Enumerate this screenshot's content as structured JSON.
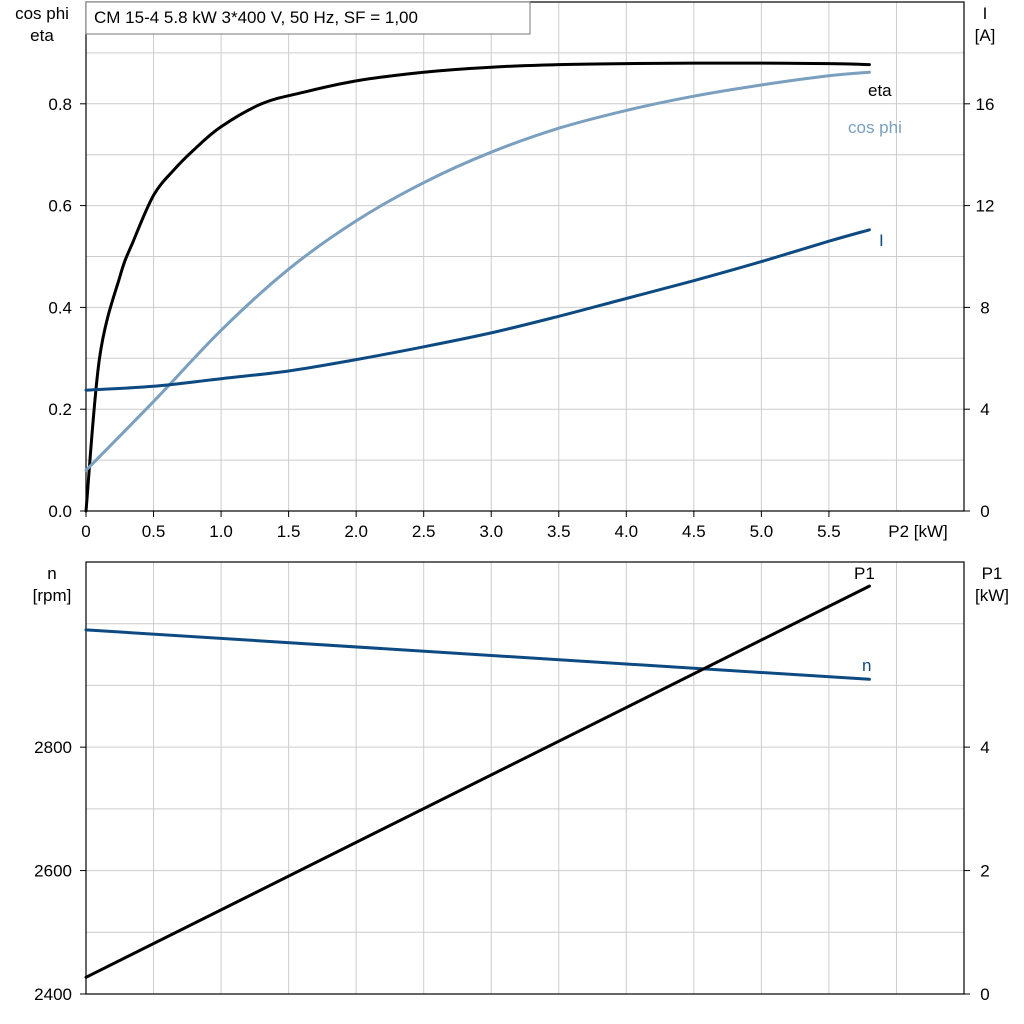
{
  "title_box": "CM 15-4   5.8 kW   3*400 V, 50 Hz, SF = 1,00",
  "colors": {
    "eta": "#000000",
    "cos_phi": "#7a9fbf",
    "I": "#0e4a82",
    "n": "#0e4a82",
    "P1": "#000000"
  },
  "chart_data": [
    {
      "type": "line",
      "x_label": "P2 [kW]",
      "x_ticks": [
        "0",
        "0.5",
        "1.0",
        "1.5",
        "2.0",
        "2.5",
        "3.0",
        "3.5",
        "4.0",
        "4.5",
        "5.0",
        "5.5"
      ],
      "xlim": [
        0,
        6.5
      ],
      "y_left_label": [
        "cos phi",
        "eta"
      ],
      "y_left_ticks": [
        "0.0",
        "0.2",
        "0.4",
        "0.6",
        "0.8"
      ],
      "ylim_left": [
        0,
        1.0
      ],
      "y_right_label": [
        "I",
        "[A]"
      ],
      "y_right_ticks": [
        "0",
        "4",
        "8",
        "12",
        "16"
      ],
      "ylim_right": [
        0,
        20
      ],
      "grid": true,
      "series": [
        {
          "name": "eta",
          "axis": "left",
          "x": [
            0,
            0.1,
            0.25,
            0.35,
            0.5,
            0.65,
            0.8,
            1.0,
            1.3,
            1.6,
            2.0,
            2.5,
            3.0,
            3.5,
            4.0,
            4.5,
            5.0,
            5.5,
            5.8
          ],
          "y": [
            0.0,
            0.3,
            0.46,
            0.53,
            0.62,
            0.67,
            0.71,
            0.755,
            0.8,
            0.822,
            0.845,
            0.862,
            0.872,
            0.877,
            0.879,
            0.88,
            0.88,
            0.879,
            0.877
          ]
        },
        {
          "name": "cos phi",
          "axis": "left",
          "x": [
            0,
            0.5,
            1.0,
            1.5,
            2.0,
            2.5,
            3.0,
            3.5,
            4.0,
            4.5,
            5.0,
            5.5,
            5.8
          ],
          "y": [
            0.08,
            0.215,
            0.355,
            0.475,
            0.57,
            0.645,
            0.705,
            0.752,
            0.787,
            0.815,
            0.837,
            0.855,
            0.862
          ]
        },
        {
          "name": "I",
          "axis": "right",
          "x": [
            0,
            0.5,
            1.0,
            1.5,
            2.0,
            2.5,
            3.0,
            3.5,
            4.0,
            4.5,
            5.0,
            5.5,
            5.8
          ],
          "y": [
            4.75,
            4.9,
            5.2,
            5.5,
            5.95,
            6.45,
            7.0,
            7.65,
            8.35,
            9.05,
            9.8,
            10.6,
            11.05
          ]
        }
      ]
    },
    {
      "type": "line",
      "y_left_label": [
        "n",
        "[rpm]"
      ],
      "y_left_ticks": [
        "2400",
        "2600",
        "2800"
      ],
      "ylim_left": [
        2400,
        3100
      ],
      "y_right_label": [
        "P1",
        "[kW]"
      ],
      "y_right_ticks": [
        "0",
        "2",
        "4"
      ],
      "ylim_right": [
        0,
        7
      ],
      "xlim": [
        0,
        6.5
      ],
      "grid": true,
      "series": [
        {
          "name": "n",
          "axis": "left",
          "x": [
            0,
            5.8
          ],
          "y": [
            2990,
            2910
          ]
        },
        {
          "name": "P1",
          "axis": "right",
          "x": [
            0,
            5.8
          ],
          "y": [
            0.27,
            6.61
          ]
        }
      ]
    }
  ]
}
